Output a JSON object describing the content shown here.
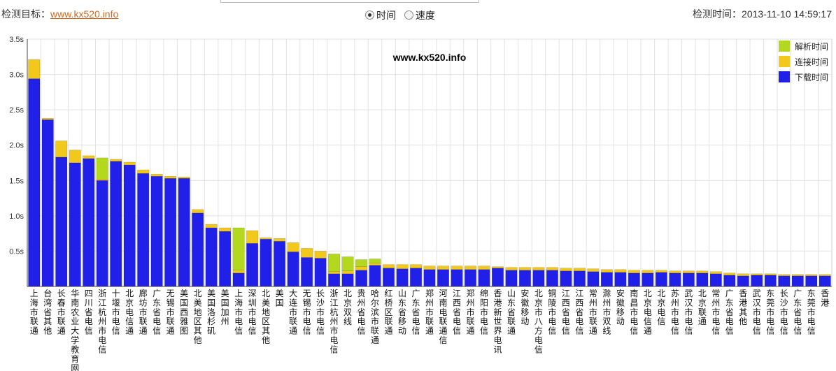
{
  "header": {
    "target_label": "检测目标：",
    "target_link": "www.kx520.info",
    "modes": [
      {
        "label": "时间",
        "selected": true
      },
      {
        "label": "速度",
        "selected": false
      }
    ],
    "time_label": "检测时间：",
    "time_value": "2013-11-10 14:59:17"
  },
  "colors": {
    "resolve": "#b4d81e",
    "connect": "#f2c81c",
    "download": "#2020e8",
    "grid": "#e2e2e2",
    "axis": "#444444"
  },
  "chart_data": {
    "type": "bar",
    "stacked": true,
    "title": "www.kx520.info",
    "ylim": [
      0,
      3.5
    ],
    "yticks": [
      "0.5s",
      "1.0s",
      "1.5s",
      "2.0s",
      "2.5s",
      "3.0s",
      "3.5s"
    ],
    "grid": true,
    "legend_position": "top-right",
    "categories": [
      "上海市联通",
      "台湾省其他",
      "长春市联通",
      "华南农业大学教育网",
      "四川省电信",
      "浙江杭州市电信",
      "十堰市电信",
      "北京电信通",
      "廊坊市联通",
      "广东省电信",
      "无锡市联通",
      "美国西雅图",
      "北美地区其他",
      "美国洛杉矶",
      "美国加州",
      "上海市电信",
      "深圳市电信",
      "北美地区其他",
      "美国",
      "大连市联通",
      "无锡市电信",
      "长沙市电信",
      "浙江杭州市电信",
      "北京双线",
      "贵州省电信",
      "哈尔滨市联通",
      "红桥区联通",
      "山东省移动",
      "广东省电信",
      "郑州市联通",
      "河南电联通信",
      "江西省电信",
      "郑州市联通",
      "绵阳市电信",
      "香港新世界电讯",
      "山东省联通",
      "安徽移动",
      "北京市八方电信",
      "铜陵市电信",
      "江西省电信",
      "江西省电信",
      "常州市联通",
      "滁州市双线",
      "安徽移动",
      "南昌市电信",
      "北京电信通",
      "北京电信",
      "苏州市电信",
      "武汉市电信",
      "北京联通",
      "常州市电信",
      "广东省电信",
      "香港其他",
      "武汉市电信",
      "东莞市电信",
      "长沙市电信",
      "广东省电信",
      "东莞市电信",
      "香港"
    ],
    "series": [
      {
        "name": "解析时间",
        "values": [
          0,
          0,
          0,
          0,
          0,
          0.3,
          0,
          0,
          0,
          0,
          0,
          0,
          0,
          0,
          0,
          0.6,
          0,
          0,
          0,
          0,
          0,
          0,
          0.25,
          0.2,
          0.1,
          0.06,
          0,
          0,
          0,
          0,
          0,
          0,
          0,
          0,
          0,
          0,
          0,
          0,
          0,
          0,
          0,
          0,
          0,
          0,
          0,
          0,
          0,
          0,
          0,
          0,
          0,
          0,
          0,
          0,
          0,
          0,
          0,
          0,
          0
        ]
      },
      {
        "name": "连接时间",
        "values": [
          0.27,
          0.02,
          0.23,
          0.18,
          0.04,
          0.02,
          0.03,
          0.04,
          0.05,
          0.03,
          0.03,
          0.02,
          0.05,
          0.05,
          0.05,
          0.04,
          0.18,
          0.02,
          0.04,
          0.13,
          0.13,
          0.1,
          0.03,
          0.04,
          0.05,
          0.03,
          0.05,
          0.06,
          0.05,
          0.05,
          0.05,
          0.05,
          0.05,
          0.05,
          0.02,
          0.04,
          0.04,
          0.04,
          0.04,
          0.04,
          0.04,
          0.04,
          0.04,
          0.04,
          0.04,
          0.04,
          0.03,
          0.03,
          0.03,
          0.03,
          0.03,
          0.03,
          0.03,
          0.02,
          0.02,
          0.02,
          0.02,
          0.02,
          0.02
        ]
      },
      {
        "name": "下载时间",
        "values": [
          2.94,
          2.36,
          1.83,
          1.75,
          1.81,
          1.5,
          1.77,
          1.72,
          1.6,
          1.56,
          1.53,
          1.53,
          1.04,
          0.83,
          0.78,
          0.19,
          0.61,
          0.67,
          0.64,
          0.49,
          0.41,
          0.4,
          0.18,
          0.18,
          0.23,
          0.3,
          0.26,
          0.25,
          0.26,
          0.24,
          0.24,
          0.24,
          0.24,
          0.24,
          0.26,
          0.23,
          0.23,
          0.23,
          0.23,
          0.22,
          0.22,
          0.21,
          0.2,
          0.2,
          0.19,
          0.19,
          0.2,
          0.19,
          0.19,
          0.19,
          0.18,
          0.16,
          0.15,
          0.16,
          0.16,
          0.15,
          0.15,
          0.15,
          0.15
        ]
      }
    ]
  }
}
